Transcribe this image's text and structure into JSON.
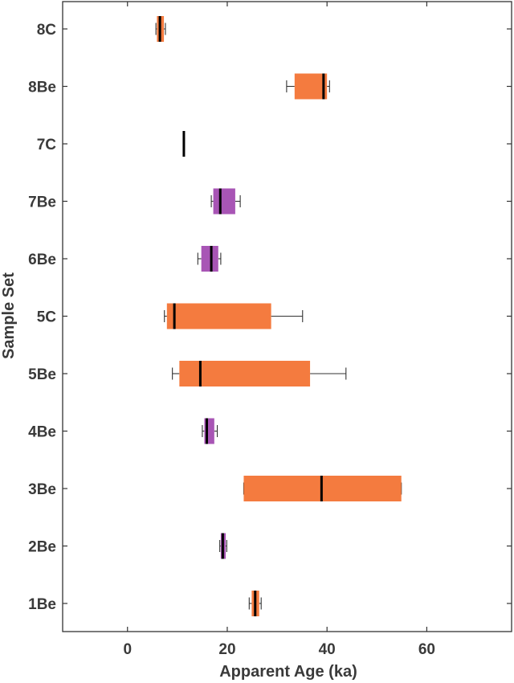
{
  "chart_data": {
    "type": "box",
    "orientation": "horizontal",
    "xlabel": "Apparent Age (ka)",
    "ylabel": "Sample Set",
    "xlim": [
      -13,
      77
    ],
    "xticks": [
      0,
      20,
      40,
      60
    ],
    "grid": false,
    "colors": {
      "orange": "#F47B3F",
      "purple": "#A855B5",
      "median": "#000000",
      "whisker": "#333333",
      "axis": "#333333"
    },
    "categories": [
      "8C",
      "8Be",
      "7C",
      "7Be",
      "6Be",
      "5C",
      "5Be",
      "4Be",
      "3Be",
      "2Be",
      "1Be"
    ],
    "boxes": [
      {
        "label": "8C",
        "color": "orange",
        "whisker_low": 5.7,
        "q1": 5.9,
        "median": 6.5,
        "q3": 7.3,
        "whisker_high": 7.6
      },
      {
        "label": "8Be",
        "color": "orange",
        "whisker_low": 31.9,
        "q1": 33.5,
        "median": 39.3,
        "q3": 40.0,
        "whisker_high": 40.5
      },
      {
        "label": "7C",
        "color": "orange",
        "whisker_low": 11.2,
        "q1": 11.2,
        "median": 11.3,
        "q3": 11.4,
        "whisker_high": 11.4
      },
      {
        "label": "7Be",
        "color": "purple",
        "whisker_low": 16.8,
        "q1": 17.2,
        "median": 18.6,
        "q3": 21.6,
        "whisker_high": 22.6
      },
      {
        "label": "6Be",
        "color": "purple",
        "whisker_low": 14.1,
        "q1": 14.8,
        "median": 16.8,
        "q3": 18.2,
        "whisker_high": 18.7
      },
      {
        "label": "5C",
        "color": "orange",
        "whisker_low": 7.4,
        "q1": 7.9,
        "median": 9.4,
        "q3": 28.8,
        "whisker_high": 35.1
      },
      {
        "label": "5Be",
        "color": "orange",
        "whisker_low": 9.0,
        "q1": 10.4,
        "median": 14.6,
        "q3": 36.6,
        "whisker_high": 43.8
      },
      {
        "label": "4Be",
        "color": "purple",
        "whisker_low": 15.0,
        "q1": 15.4,
        "median": 15.9,
        "q3": 17.4,
        "whisker_high": 18.0
      },
      {
        "label": "3Be",
        "color": "orange",
        "whisker_low": 23.3,
        "q1": 23.3,
        "median": 38.9,
        "q3": 54.9,
        "whisker_high": 54.9
      },
      {
        "label": "2Be",
        "color": "purple",
        "whisker_low": 18.5,
        "q1": 18.7,
        "median": 19.1,
        "q3": 19.7,
        "whisker_high": 19.9
      },
      {
        "label": "1Be",
        "color": "orange",
        "whisker_low": 24.4,
        "q1": 24.9,
        "median": 25.6,
        "q3": 26.4,
        "whisker_high": 26.8
      }
    ]
  }
}
